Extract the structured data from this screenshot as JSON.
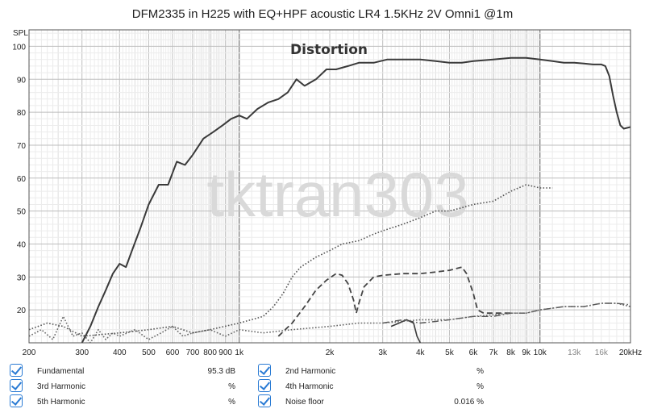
{
  "chart_data": {
    "type": "line",
    "title": "DFM2335 in H225 with EQ+HPF acoustic LR4 1.5KHz 2V Omni1 @1m",
    "subtitle": "Distortion",
    "ylabel": "SPL",
    "watermark": "tktran303",
    "x_scale": "log",
    "xlim": [
      200,
      20000
    ],
    "ylim": [
      10,
      105
    ],
    "grid": true,
    "y_ticks": [
      20,
      30,
      40,
      50,
      60,
      70,
      80,
      90,
      100
    ],
    "x_ticks": [
      {
        "value": 200,
        "label": "200",
        "minor": false
      },
      {
        "value": 300,
        "label": "300",
        "minor": false
      },
      {
        "value": 400,
        "label": "400",
        "minor": false
      },
      {
        "value": 500,
        "label": "500",
        "minor": false
      },
      {
        "value": 600,
        "label": "600",
        "minor": false
      },
      {
        "value": 700,
        "label": "700",
        "minor": false
      },
      {
        "value": 800,
        "label": "800",
        "minor": false
      },
      {
        "value": 900,
        "label": "900",
        "minor": false
      },
      {
        "value": 1000,
        "label": "1k",
        "minor": false
      },
      {
        "value": 2000,
        "label": "2k",
        "minor": false
      },
      {
        "value": 3000,
        "label": "3k",
        "minor": false
      },
      {
        "value": 4000,
        "label": "4k",
        "minor": false
      },
      {
        "value": 5000,
        "label": "5k",
        "minor": false
      },
      {
        "value": 6000,
        "label": "6k",
        "minor": false
      },
      {
        "value": 7000,
        "label": "7k",
        "minor": false
      },
      {
        "value": 8000,
        "label": "8k",
        "minor": false
      },
      {
        "value": 9000,
        "label": "9k",
        "minor": false
      },
      {
        "value": 10000,
        "label": "10k",
        "minor": false
      },
      {
        "value": 13000,
        "label": "13k",
        "minor": true
      },
      {
        "value": 16000,
        "label": "16k",
        "minor": true
      },
      {
        "value": 20000,
        "label": "20kHz",
        "minor": false
      }
    ],
    "series": [
      {
        "name": "Fundamental",
        "style": "solid",
        "color": "#3a3a3a",
        "width": 2,
        "points": [
          [
            300,
            10
          ],
          [
            320,
            15
          ],
          [
            340,
            21
          ],
          [
            360,
            26
          ],
          [
            380,
            31
          ],
          [
            400,
            34
          ],
          [
            420,
            33
          ],
          [
            440,
            38
          ],
          [
            470,
            45
          ],
          [
            500,
            52
          ],
          [
            540,
            58
          ],
          [
            580,
            58
          ],
          [
            620,
            65
          ],
          [
            660,
            64
          ],
          [
            700,
            67
          ],
          [
            760,
            72
          ],
          [
            820,
            74
          ],
          [
            880,
            76
          ],
          [
            940,
            78
          ],
          [
            1000,
            79
          ],
          [
            1060,
            78
          ],
          [
            1150,
            81
          ],
          [
            1250,
            83
          ],
          [
            1350,
            84
          ],
          [
            1450,
            86
          ],
          [
            1550,
            90
          ],
          [
            1650,
            88
          ],
          [
            1800,
            90
          ],
          [
            1950,
            93
          ],
          [
            2100,
            93
          ],
          [
            2300,
            94
          ],
          [
            2500,
            95
          ],
          [
            2800,
            95
          ],
          [
            3100,
            96
          ],
          [
            3500,
            96
          ],
          [
            4000,
            96
          ],
          [
            4500,
            95.5
          ],
          [
            5000,
            95
          ],
          [
            5500,
            95
          ],
          [
            6000,
            95.5
          ],
          [
            7000,
            96
          ],
          [
            8000,
            96.5
          ],
          [
            9000,
            96.5
          ],
          [
            10000,
            96
          ],
          [
            11000,
            95.5
          ],
          [
            12000,
            95
          ],
          [
            13000,
            95
          ],
          [
            14000,
            94.8
          ],
          [
            15000,
            94.5
          ],
          [
            16000,
            94.5
          ],
          [
            16500,
            94
          ],
          [
            17000,
            91
          ],
          [
            17500,
            85
          ],
          [
            18000,
            80
          ],
          [
            18500,
            76
          ],
          [
            19000,
            75
          ],
          [
            20000,
            75.5
          ]
        ]
      },
      {
        "name": "2nd Harmonic",
        "style": "dotted",
        "color": "#555555",
        "width": 1.6,
        "points": [
          [
            200,
            14
          ],
          [
            230,
            16
          ],
          [
            260,
            15
          ],
          [
            300,
            12
          ],
          [
            400,
            13
          ],
          [
            500,
            14
          ],
          [
            600,
            15
          ],
          [
            700,
            13
          ],
          [
            800,
            14
          ],
          [
            1000,
            16
          ],
          [
            1200,
            18
          ],
          [
            1300,
            21
          ],
          [
            1400,
            25
          ],
          [
            1500,
            30
          ],
          [
            1600,
            33
          ],
          [
            1800,
            36
          ],
          [
            2000,
            38
          ],
          [
            2200,
            40
          ],
          [
            2500,
            41
          ],
          [
            2800,
            43
          ],
          [
            3000,
            44
          ],
          [
            3500,
            46
          ],
          [
            4000,
            48
          ],
          [
            4500,
            50
          ],
          [
            5000,
            50
          ],
          [
            5500,
            51
          ],
          [
            6000,
            52
          ],
          [
            7000,
            53
          ],
          [
            8000,
            56
          ],
          [
            9000,
            58
          ],
          [
            10000,
            57
          ],
          [
            11000,
            57
          ]
        ]
      },
      {
        "name": "3rd Harmonic",
        "style": "dashed",
        "color": "#444444",
        "width": 1.8,
        "points": [
          [
            1350,
            12
          ],
          [
            1500,
            16
          ],
          [
            1650,
            21
          ],
          [
            1800,
            26
          ],
          [
            1950,
            29
          ],
          [
            2100,
            31
          ],
          [
            2200,
            30.5
          ],
          [
            2300,
            28
          ],
          [
            2400,
            23
          ],
          [
            2450,
            19
          ],
          [
            2500,
            22
          ],
          [
            2600,
            27
          ],
          [
            2800,
            30
          ],
          [
            3000,
            30.5
          ],
          [
            3500,
            31
          ],
          [
            4000,
            31
          ],
          [
            4500,
            31.5
          ],
          [
            5000,
            32
          ],
          [
            5500,
            33
          ],
          [
            5700,
            31
          ],
          [
            6000,
            25
          ],
          [
            6200,
            20
          ],
          [
            6500,
            19
          ],
          [
            7000,
            19
          ],
          [
            8000,
            19
          ]
        ]
      },
      {
        "name": "4th Harmonic",
        "style": "dashdot",
        "color": "#555555",
        "width": 1.4,
        "points": [
          [
            3000,
            16
          ],
          [
            3500,
            17
          ],
          [
            4000,
            16
          ],
          [
            4500,
            16.5
          ],
          [
            5000,
            17
          ],
          [
            6000,
            18
          ],
          [
            7000,
            18
          ],
          [
            8000,
            19
          ],
          [
            9000,
            19
          ],
          [
            10000,
            20
          ],
          [
            11000,
            20.5
          ],
          [
            12000,
            21
          ],
          [
            14000,
            21
          ],
          [
            16000,
            22
          ],
          [
            18000,
            22
          ],
          [
            20000,
            21.5
          ]
        ]
      },
      {
        "name": "5th Harmonic",
        "style": "solid",
        "color": "#3a3a3a",
        "width": 1.6,
        "points": [
          [
            3200,
            15
          ],
          [
            3400,
            16
          ],
          [
            3600,
            17
          ],
          [
            3800,
            16
          ],
          [
            3900,
            12
          ],
          [
            4000,
            10
          ]
        ]
      },
      {
        "name": "Noise floor",
        "style": "dotted",
        "color": "#666666",
        "width": 1.6,
        "points": [
          [
            200,
            12
          ],
          [
            220,
            14
          ],
          [
            240,
            11
          ],
          [
            260,
            18
          ],
          [
            280,
            12
          ],
          [
            300,
            13
          ],
          [
            320,
            10
          ],
          [
            340,
            14
          ],
          [
            360,
            11
          ],
          [
            380,
            13
          ],
          [
            400,
            12
          ],
          [
            450,
            14
          ],
          [
            500,
            11
          ],
          [
            550,
            13
          ],
          [
            600,
            15
          ],
          [
            650,
            12
          ],
          [
            700,
            13
          ],
          [
            800,
            14
          ],
          [
            900,
            12
          ],
          [
            1000,
            14
          ],
          [
            1200,
            13
          ],
          [
            1500,
            14
          ],
          [
            2000,
            15
          ],
          [
            2500,
            16
          ],
          [
            3000,
            16
          ],
          [
            4000,
            17
          ],
          [
            5000,
            17
          ],
          [
            6000,
            18
          ],
          [
            7000,
            18.5
          ],
          [
            8000,
            19
          ],
          [
            9000,
            19
          ],
          [
            10000,
            20
          ],
          [
            12000,
            21
          ],
          [
            14000,
            21
          ],
          [
            16000,
            22
          ],
          [
            18000,
            22
          ],
          [
            20000,
            21
          ]
        ]
      }
    ]
  },
  "legend": [
    {
      "name": "Fundamental",
      "value": "95.3 dB",
      "style": "solid"
    },
    {
      "name": "2nd Harmonic",
      "value": "%",
      "style": "dotted"
    },
    {
      "name": "3rd Harmonic",
      "value": "%",
      "style": "dashed"
    },
    {
      "name": "4th Harmonic",
      "value": "%",
      "style": "dashdot"
    },
    {
      "name": "5th Harmonic",
      "value": "%",
      "style": "solid"
    },
    {
      "name": "Noise floor",
      "value": "0.016 %",
      "style": "dotted"
    }
  ]
}
